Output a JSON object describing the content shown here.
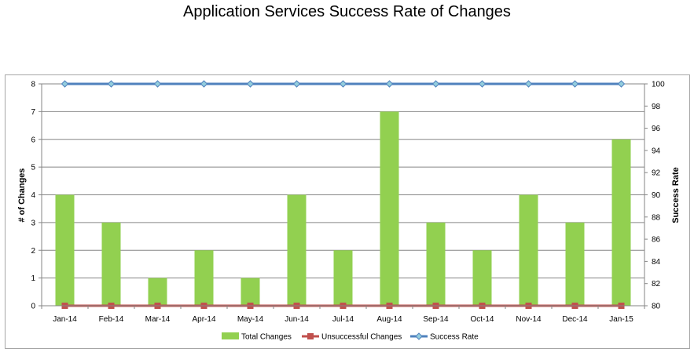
{
  "chart_data": {
    "type": "bar",
    "title": "Application Services Success Rate of Changes",
    "categories": [
      "Jan-14",
      "Feb-14",
      "Mar-14",
      "Apr-14",
      "May-14",
      "Jun-14",
      "Jul-14",
      "Aug-14",
      "Sep-14",
      "Oct-14",
      "Nov-14",
      "Dec-14",
      "Jan-15"
    ],
    "series": [
      {
        "name": "Total Changes",
        "kind": "bar",
        "axis": "left",
        "color": "#92d050",
        "values": [
          4,
          3,
          1,
          2,
          1,
          4,
          2,
          7,
          3,
          2,
          4,
          3,
          6
        ]
      },
      {
        "name": "Unsuccessful Changes",
        "kind": "line",
        "axis": "left",
        "color": "#c0504d",
        "values": [
          0,
          0,
          0,
          0,
          0,
          0,
          0,
          0,
          0,
          0,
          0,
          0,
          0
        ]
      },
      {
        "name": "Success Rate",
        "kind": "line",
        "axis": "right",
        "color": "#4f81bd",
        "values": [
          100,
          100,
          100,
          100,
          100,
          100,
          100,
          100,
          100,
          100,
          100,
          100,
          100
        ]
      }
    ],
    "ylabel": "# of Changes",
    "ylim": [
      0,
      8
    ],
    "yticks": [
      0,
      1,
      2,
      3,
      4,
      5,
      6,
      7,
      8
    ],
    "y2label": "Success Rate",
    "y2lim": [
      80,
      100
    ],
    "y2ticks": [
      80,
      82,
      84,
      86,
      88,
      90,
      92,
      94,
      96,
      98,
      100
    ],
    "grid": true,
    "legend": "bottom"
  }
}
